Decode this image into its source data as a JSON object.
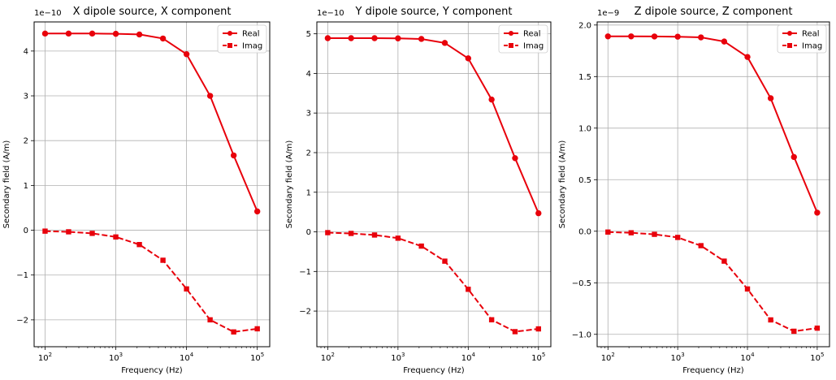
{
  "chart_data": [
    {
      "type": "line",
      "title": "X dipole source, X component",
      "xlabel": "Frequency (Hz)",
      "ylabel": "Secondary field (A/m)",
      "xscale": "log",
      "xlim": [
        70,
        150000
      ],
      "ylim": [
        -2.6,
        4.65
      ],
      "y_multiplier": "1e−10",
      "xticks": [
        100,
        1000,
        10000,
        100000
      ],
      "xtick_exponents": [
        "2",
        "3",
        "4",
        "5"
      ],
      "yticks": [
        -2,
        -1,
        0,
        1,
        2,
        3,
        4
      ],
      "ytick_labels": [
        "−2",
        "−1",
        "0",
        "1",
        "2",
        "3",
        "4"
      ],
      "grid": true,
      "legend": "top-right",
      "x": [
        100,
        215,
        464,
        1000,
        2154,
        4642,
        10000,
        21544,
        46416,
        100000
      ],
      "series": [
        {
          "name": "Real",
          "style": "solid",
          "marker": "circle",
          "color": "#e8000b",
          "values": [
            4.39,
            4.39,
            4.39,
            4.385,
            4.37,
            4.28,
            3.93,
            3.0,
            1.67,
            0.42
          ]
        },
        {
          "name": "Imag",
          "style": "dashed",
          "marker": "square",
          "color": "#e8000b",
          "values": [
            -0.02,
            -0.035,
            -0.07,
            -0.15,
            -0.32,
            -0.67,
            -1.31,
            -2.0,
            -2.27,
            -2.2
          ]
        }
      ]
    },
    {
      "type": "line",
      "title": "Y dipole source, Y component",
      "xlabel": "Frequency (Hz)",
      "ylabel": "Secondary field (A/m)",
      "xscale": "log",
      "xlim": [
        70,
        150000
      ],
      "ylim": [
        -2.9,
        5.3
      ],
      "y_multiplier": "1e−10",
      "xticks": [
        100,
        1000,
        10000,
        100000
      ],
      "xtick_exponents": [
        "2",
        "3",
        "4",
        "5"
      ],
      "yticks": [
        -2,
        -1,
        0,
        1,
        2,
        3,
        4,
        5
      ],
      "ytick_labels": [
        "−2",
        "−1",
        "0",
        "1",
        "2",
        "3",
        "4",
        "5"
      ],
      "grid": true,
      "legend": "top-right",
      "x": [
        100,
        215,
        464,
        1000,
        2154,
        4642,
        10000,
        21544,
        46416,
        100000
      ],
      "series": [
        {
          "name": "Real",
          "style": "solid",
          "marker": "circle",
          "color": "#e8000b",
          "values": [
            4.89,
            4.89,
            4.89,
            4.885,
            4.87,
            4.77,
            4.38,
            3.34,
            1.86,
            0.47
          ]
        },
        {
          "name": "Imag",
          "style": "dashed",
          "marker": "square",
          "color": "#e8000b",
          "values": [
            -0.02,
            -0.04,
            -0.08,
            -0.16,
            -0.36,
            -0.74,
            -1.45,
            -2.22,
            -2.52,
            -2.45
          ]
        }
      ]
    },
    {
      "type": "line",
      "title": "Z dipole source, Z component",
      "xlabel": "Frequency (Hz)",
      "ylabel": "Secondary field (A/m)",
      "xscale": "log",
      "xlim": [
        70,
        150000
      ],
      "ylim": [
        -1.12,
        2.03
      ],
      "y_multiplier": "1e−9",
      "xticks": [
        100,
        1000,
        10000,
        100000
      ],
      "xtick_exponents": [
        "2",
        "3",
        "4",
        "5"
      ],
      "yticks": [
        -1.0,
        -0.5,
        0.0,
        0.5,
        1.0,
        1.5,
        2.0
      ],
      "ytick_labels": [
        "−1.0",
        "−0.5",
        "0.0",
        "0.5",
        "1.0",
        "1.5",
        "2.0"
      ],
      "grid": true,
      "legend": "top-right",
      "x": [
        100,
        215,
        464,
        1000,
        2154,
        4642,
        10000,
        21544,
        46416,
        100000
      ],
      "series": [
        {
          "name": "Real",
          "style": "solid",
          "marker": "circle",
          "color": "#e8000b",
          "values": [
            1.89,
            1.89,
            1.889,
            1.887,
            1.88,
            1.84,
            1.69,
            1.29,
            0.72,
            0.18
          ]
        },
        {
          "name": "Imag",
          "style": "dashed",
          "marker": "square",
          "color": "#e8000b",
          "values": [
            -0.008,
            -0.015,
            -0.03,
            -0.06,
            -0.14,
            -0.29,
            -0.56,
            -0.86,
            -0.97,
            -0.94
          ]
        }
      ]
    }
  ]
}
